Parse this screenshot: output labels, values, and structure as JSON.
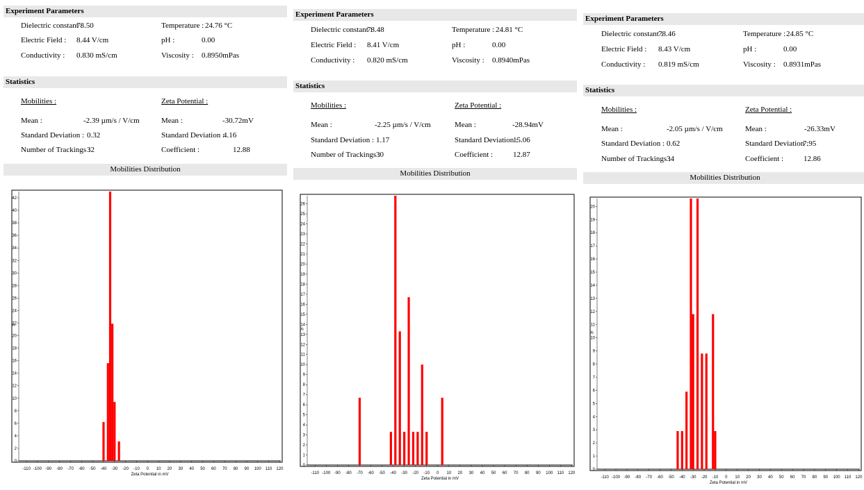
{
  "labels": {
    "experiment_header": "Experiment Parameters",
    "statistics_header": "Statistics",
    "distribution_header": "Mobilities Distribution",
    "dielectric": "Dielectric constant :",
    "temperature": "Temperature :",
    "field": "Electric Field :",
    "ph": "pH :",
    "conductivity": "Conductivity :",
    "viscosity": "Viscosity :",
    "mobilities": "Mobilities :",
    "zeta": "Zeta Potential :",
    "mean": "Mean :",
    "std": "Standard Deviation :",
    "tracks": "Number of Trackings :",
    "zmean": "Mean :",
    "zstd": "Standard Deviation :",
    "coef": "Coefficient :",
    "x_axis": "Zeta Potential in mV",
    "y_axis": "%"
  },
  "panels": [
    {
      "dielectric": "78.50",
      "temperature": "24.76 °C",
      "field": "8.44 V/cm",
      "ph": "0.00",
      "conductivity": "0.830 mS/cm",
      "viscosity": "0.8950mPas",
      "mob_mean": "-2.39 µm/s / V/cm",
      "mob_std": "0.32",
      "tracks": "32",
      "zeta_mean": "-30.72mV",
      "zeta_std": "4.16",
      "coef": "12.88"
    },
    {
      "dielectric": "78.48",
      "temperature": "24.81 °C",
      "field": "8.41 V/cm",
      "ph": "0.00",
      "conductivity": "0.820 mS/cm",
      "viscosity": "0.8940mPas",
      "mob_mean": "-2.25 µm/s / V/cm",
      "mob_std": "1.17",
      "tracks": "30",
      "zeta_mean": "-28.94mV",
      "zeta_std": "15.06",
      "coef": "12.87"
    },
    {
      "dielectric": "78.46",
      "temperature": "24.85 °C",
      "field": "8.43 V/cm",
      "ph": "0.00",
      "conductivity": "0.819 mS/cm",
      "viscosity": "0.8931mPas",
      "mob_mean": "-2.05 µm/s / V/cm",
      "mob_std": "0.62",
      "tracks": "34",
      "zeta_mean": "-26.33mV",
      "zeta_std": "7.95",
      "coef": "12.86"
    }
  ],
  "chart_data": [
    {
      "type": "bar",
      "xlabel": "Zeta Potential in mV",
      "ylabel": "%",
      "xlim": [
        -117,
        121
      ],
      "ylim": [
        0,
        43
      ],
      "x_ticks": [
        -110,
        -100,
        -90,
        -80,
        -70,
        -60,
        -50,
        -40,
        -30,
        -20,
        -10,
        0,
        10,
        20,
        30,
        40,
        50,
        60,
        70,
        80,
        90,
        100,
        110,
        120
      ],
      "y_ticks": [
        0,
        2,
        4,
        6,
        8,
        10,
        12,
        14,
        16,
        18,
        20,
        22,
        24,
        26,
        28,
        30,
        32,
        34,
        36,
        38,
        40,
        42
      ],
      "bars": [
        {
          "x": -40,
          "y": 6.2
        },
        {
          "x": -36,
          "y": 15.6
        },
        {
          "x": -34,
          "y": 43
        },
        {
          "x": -32,
          "y": 21.9
        },
        {
          "x": -30,
          "y": 9.4
        },
        {
          "x": -26,
          "y": 3.1
        }
      ]
    },
    {
      "type": "bar",
      "xlabel": "Zeta Potential in mV",
      "ylabel": "%",
      "xlim": [
        -117,
        121
      ],
      "ylim": [
        0,
        26.8
      ],
      "x_ticks": [
        -110,
        -100,
        -90,
        -80,
        -70,
        -60,
        -50,
        -40,
        -30,
        -20,
        -10,
        0,
        10,
        20,
        30,
        40,
        50,
        60,
        70,
        80,
        90,
        100,
        110,
        120
      ],
      "y_ticks": [
        0,
        1,
        2,
        3,
        4,
        5,
        6,
        7,
        8,
        9,
        10,
        11,
        12,
        13,
        14,
        15,
        16,
        17,
        18,
        19,
        20,
        21,
        22,
        23,
        24,
        25,
        26
      ],
      "bars": [
        {
          "x": -70,
          "y": 6.7
        },
        {
          "x": -42,
          "y": 3.3
        },
        {
          "x": -38,
          "y": 26.8
        },
        {
          "x": -34,
          "y": 13.3
        },
        {
          "x": -30,
          "y": 3.3
        },
        {
          "x": -26,
          "y": 16.7
        },
        {
          "x": -22,
          "y": 3.3
        },
        {
          "x": -18,
          "y": 3.3
        },
        {
          "x": -14,
          "y": 10
        },
        {
          "x": -10,
          "y": 3.3
        },
        {
          "x": 4,
          "y": 6.7
        }
      ]
    },
    {
      "type": "bar",
      "xlabel": "Zeta Potential in mV",
      "ylabel": "%",
      "xlim": [
        -117,
        121
      ],
      "ylim": [
        0,
        20.6
      ],
      "x_ticks": [
        -110,
        -100,
        -90,
        -80,
        -70,
        -60,
        -50,
        -40,
        -30,
        -20,
        -10,
        0,
        10,
        20,
        30,
        40,
        50,
        60,
        70,
        80,
        90,
        100,
        110,
        120
      ],
      "y_ticks": [
        0,
        1,
        2,
        3,
        4,
        5,
        6,
        7,
        8,
        9,
        10,
        11,
        12,
        13,
        14,
        15,
        16,
        17,
        18,
        19,
        20
      ],
      "bars": [
        {
          "x": -44,
          "y": 2.9
        },
        {
          "x": -40,
          "y": 2.9
        },
        {
          "x": -36,
          "y": 5.9
        },
        {
          "x": -32,
          "y": 20.6
        },
        {
          "x": -30,
          "y": 11.8
        },
        {
          "x": -26,
          "y": 20.6
        },
        {
          "x": -22,
          "y": 8.8
        },
        {
          "x": -18,
          "y": 8.8
        },
        {
          "x": -12,
          "y": 11.8
        },
        {
          "x": -10,
          "y": 2.9
        }
      ]
    }
  ]
}
